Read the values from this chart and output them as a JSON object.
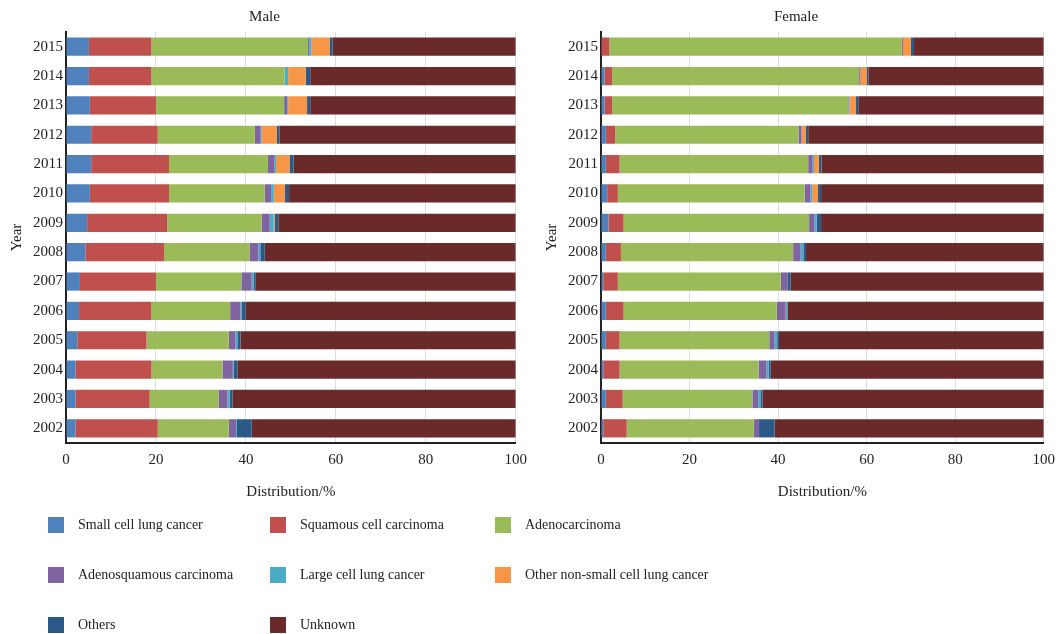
{
  "chart_data": [
    {
      "type": "bar",
      "title": "Male",
      "xlabel": "Distribution/%",
      "ylabel": "Year",
      "orientation": "horizontal",
      "stacked": true,
      "xlim": [
        0,
        100
      ],
      "xticks": [
        0,
        20,
        40,
        60,
        80,
        100
      ],
      "grid": "x",
      "legend": "bottom",
      "categories": [
        "2015",
        "2014",
        "2013",
        "2012",
        "2011",
        "2010",
        "2009",
        "2008",
        "2007",
        "2006",
        "2005",
        "2004",
        "2003",
        "2002"
      ],
      "series": [
        {
          "name": "Small cell lung cancer",
          "color": "#4f81bd",
          "values": [
            5.1,
            5.1,
            5.3,
            5.6,
            5.6,
            5.3,
            4.7,
            4.3,
            3.1,
            2.9,
            2.5,
            2.1,
            2.1,
            2.1
          ]
        },
        {
          "name": "Squamous cell carcinoma",
          "color": "#c0504d",
          "values": [
            13.9,
            13.9,
            14.7,
            14.8,
            17.3,
            17.6,
            17.8,
            17.5,
            16.9,
            16.1,
            15.4,
            16.9,
            16.5,
            18.3
          ]
        },
        {
          "name": "Adenocarcinoma",
          "color": "#9bbb59",
          "values": [
            34.8,
            29.6,
            28.5,
            21.6,
            22.0,
            21.3,
            21.0,
            19.0,
            19.0,
            17.5,
            18.3,
            15.8,
            15.4,
            15.8
          ]
        },
        {
          "name": "Adenosquamous carcinoma",
          "color": "#8064a2",
          "values": [
            0.3,
            null,
            0.7,
            1.3,
            1.4,
            1.4,
            1.8,
            2.0,
            2.3,
            2.3,
            1.5,
            2.3,
            1.9,
            1.6
          ]
        },
        {
          "name": "Large cell lung cancer",
          "color": "#4bacc6",
          "values": [
            0.5,
            0.8,
            0.2,
            0.2,
            0.4,
            0.6,
            0.9,
            0.4,
            0.4,
            0.3,
            0.4,
            0.2,
            0.5,
            0.2
          ]
        },
        {
          "name": "Other non-small cell lung cancer",
          "color": "#f79646",
          "values": [
            4.0,
            3.9,
            4.2,
            3.4,
            3.0,
            2.5,
            0.2,
            0,
            0,
            0,
            0,
            0,
            0,
            0
          ]
        },
        {
          "name": "Others",
          "color": "#2c5a88",
          "values": [
            0.7,
            1.0,
            0.7,
            0.6,
            0.9,
            0.9,
            0.8,
            1.0,
            0.5,
            0.8,
            0.7,
            0.8,
            0.6,
            3.3
          ]
        },
        {
          "name": "Unknown",
          "color": "#6b2a2a",
          "values": [
            40.7,
            45.7,
            45.7,
            52.5,
            49.4,
            50.4,
            52.8,
            55.8,
            57.8,
            60.1,
            61.2,
            61.9,
            63.0,
            58.7
          ]
        }
      ]
    },
    {
      "type": "bar",
      "title": "Female",
      "xlabel": "Distribution/%",
      "ylabel": "Year",
      "orientation": "horizontal",
      "stacked": true,
      "xlim": [
        0,
        100
      ],
      "xticks": [
        0,
        20,
        40,
        60,
        80,
        100
      ],
      "grid": "x",
      "categories": [
        "2015",
        "2014",
        "2013",
        "2012",
        "2011",
        "2010",
        "2009",
        "2008",
        "2007",
        "2006",
        "2005",
        "2004",
        "2003",
        "2002"
      ],
      "series": [
        {
          "color": "#4f81bd",
          "values": [
            null,
            0.8,
            0.8,
            1.1,
            1.1,
            1.4,
            1.7,
            1.1,
            0.5,
            1.1,
            1.1,
            0.5,
            1.1,
            0.5
          ]
        },
        {
          "color": "#c0504d",
          "values": [
            1.9,
            1.7,
            1.7,
            2.1,
            3.1,
            2.4,
            3.4,
            3.4,
            3.3,
            4.0,
            3.1,
            3.7,
            3.8,
            5.3
          ]
        },
        {
          "color": "#9bbb59",
          "values": [
            66.0,
            55.8,
            53.3,
            41.4,
            42.6,
            42.2,
            41.9,
            38.9,
            36.8,
            34.6,
            33.8,
            31.4,
            29.3,
            28.7
          ]
        },
        {
          "color": "#8064a2",
          "values": [
            0.3,
            0.3,
            0.1,
            0.7,
            1.0,
            1.3,
            1.2,
            1.7,
            1.5,
            2.0,
            1.2,
            1.8,
            1.3,
            1.2
          ]
        },
        {
          "color": "#4bacc6",
          "values": [
            0,
            0,
            0.2,
            0,
            0.3,
            0.4,
            0.5,
            0.6,
            0,
            0.4,
            0.6,
            0.5,
            0.5,
            0
          ]
        },
        {
          "color": "#f79646",
          "values": [
            1.8,
            1.4,
            1.5,
            0.9,
            1.1,
            1.3,
            0,
            0,
            0,
            0,
            0,
            0,
            0,
            0
          ]
        },
        {
          "color": "#2c5a88",
          "values": [
            0.7,
            0.4,
            0.5,
            0.6,
            0.6,
            0.7,
            1.0,
            0.6,
            0.7,
            0,
            0.4,
            0.4,
            0.5,
            3.5
          ]
        },
        {
          "color": "#6b2a2a",
          "values": [
            29.3,
            39.6,
            41.9,
            53.2,
            50.2,
            50.3,
            50.3,
            53.7,
            57.2,
            57.9,
            59.8,
            61.7,
            63.5,
            60.8
          ]
        }
      ]
    }
  ]
}
